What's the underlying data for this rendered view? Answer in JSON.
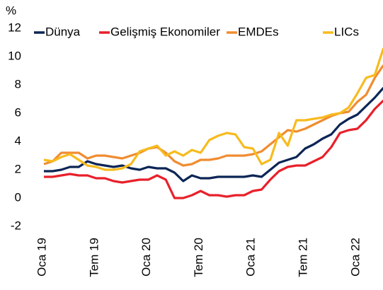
{
  "chart_data": {
    "type": "line",
    "unit": "%",
    "categories": [
      "Oca 19",
      null,
      null,
      null,
      null,
      null,
      "Tem 19",
      null,
      null,
      null,
      null,
      null,
      "Oca 20",
      null,
      null,
      null,
      null,
      null,
      "Tem 20",
      null,
      null,
      null,
      null,
      null,
      "Oca 21",
      null,
      null,
      null,
      null,
      null,
      "Tem 21",
      null,
      null,
      null,
      null,
      null,
      "Oca 22",
      null,
      null,
      null
    ],
    "series": [
      {
        "name": "Dünya",
        "color": "#0b2555",
        "values": [
          1.9,
          1.9,
          2.0,
          2.2,
          2.2,
          2.6,
          2.4,
          2.3,
          2.2,
          2.3,
          2.1,
          2.0,
          2.2,
          2.1,
          2.1,
          1.8,
          1.2,
          1.6,
          1.4,
          1.4,
          1.5,
          1.5,
          1.5,
          1.5,
          1.6,
          1.5,
          2.0,
          2.5,
          2.7,
          2.9,
          3.5,
          3.8,
          4.2,
          4.5,
          5.2,
          5.6,
          5.9,
          6.5,
          7.1,
          7.8
        ]
      },
      {
        "name": "Gelişmiş Ekonomiler",
        "color": "#e8202a",
        "values": [
          1.5,
          1.5,
          1.6,
          1.7,
          1.6,
          1.6,
          1.4,
          1.4,
          1.2,
          1.1,
          1.2,
          1.3,
          1.3,
          1.6,
          1.3,
          0.0,
          0.0,
          0.2,
          0.5,
          0.2,
          0.2,
          0.1,
          0.2,
          0.2,
          0.5,
          0.6,
          1.3,
          1.9,
          2.2,
          2.3,
          2.3,
          2.6,
          2.9,
          3.6,
          4.6,
          4.8,
          4.9,
          5.5,
          6.3,
          6.9
        ]
      },
      {
        "name": "EMDEs",
        "color": "#f08c30",
        "values": [
          2.4,
          2.6,
          3.2,
          3.2,
          3.2,
          2.8,
          3.0,
          3.0,
          2.9,
          2.8,
          3.0,
          3.2,
          3.5,
          3.6,
          3.2,
          2.6,
          2.3,
          2.4,
          2.7,
          2.7,
          2.8,
          3.0,
          3.0,
          3.0,
          3.1,
          3.3,
          3.8,
          4.3,
          4.8,
          4.7,
          4.9,
          5.2,
          5.5,
          5.8,
          6.0,
          6.1,
          6.8,
          7.3,
          8.5,
          9.4
        ]
      },
      {
        "name": "LICs",
        "color": "#f7bb1e",
        "values": [
          2.7,
          2.6,
          2.9,
          3.1,
          2.7,
          2.3,
          2.2,
          2.0,
          2.0,
          2.1,
          2.4,
          3.3,
          3.5,
          3.7,
          3.0,
          3.3,
          3.0,
          3.4,
          3.2,
          4.1,
          4.4,
          4.6,
          4.5,
          3.6,
          3.5,
          2.4,
          2.7,
          4.6,
          3.7,
          5.5,
          5.5,
          5.6,
          5.7,
          5.9,
          6.0,
          6.4,
          7.4,
          8.5,
          8.7,
          10.6
        ]
      }
    ],
    "ylim": [
      -2,
      12
    ],
    "yticks": [
      -2,
      0,
      2,
      4,
      6,
      8,
      10,
      12
    ],
    "grid": false
  }
}
